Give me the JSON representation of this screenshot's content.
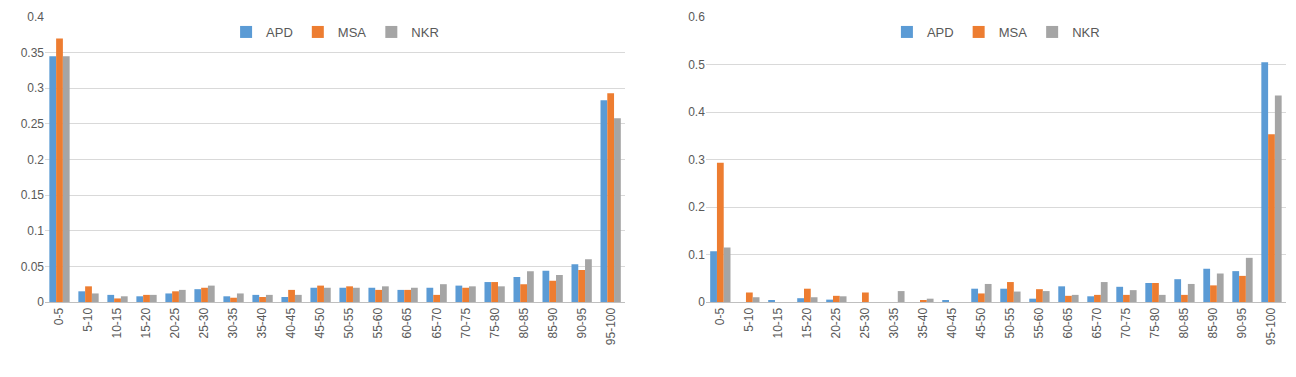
{
  "chart_data": [
    {
      "type": "bar",
      "categories": [
        "0-5",
        "5-10",
        "10-15",
        "15-20",
        "20-25",
        "25-30",
        "30-35",
        "35-40",
        "40-45",
        "45-50",
        "50-55",
        "55-60",
        "60-65",
        "65-70",
        "70-75",
        "75-80",
        "80-85",
        "85-90",
        "90-95",
        "95-100"
      ],
      "series": [
        {
          "name": "APD",
          "color": "#5B9BD5",
          "values": [
            0.345,
            0.015,
            0.01,
            0.008,
            0.012,
            0.018,
            0.008,
            0.01,
            0.007,
            0.02,
            0.02,
            0.02,
            0.017,
            0.02,
            0.023,
            0.028,
            0.035,
            0.044,
            0.053,
            0.283
          ]
        },
        {
          "name": "MSA",
          "color": "#ED7D31",
          "values": [
            0.37,
            0.022,
            0.005,
            0.01,
            0.015,
            0.02,
            0.006,
            0.007,
            0.017,
            0.023,
            0.022,
            0.017,
            0.017,
            0.01,
            0.02,
            0.028,
            0.025,
            0.03,
            0.045,
            0.293
          ]
        },
        {
          "name": "NKR",
          "color": "#A5A5A5",
          "values": [
            0.345,
            0.012,
            0.008,
            0.01,
            0.017,
            0.023,
            0.012,
            0.01,
            0.01,
            0.02,
            0.02,
            0.022,
            0.02,
            0.025,
            0.022,
            0.022,
            0.043,
            0.038,
            0.06,
            0.258
          ]
        }
      ],
      "ylim": [
        0,
        0.4
      ],
      "yticks": [
        0,
        0.05,
        0.1,
        0.15,
        0.2,
        0.25,
        0.3,
        0.35,
        0.4
      ],
      "grid": true,
      "legend": "top"
    },
    {
      "type": "bar",
      "categories": [
        "0-5",
        "5-10",
        "10-15",
        "15-20",
        "20-25",
        "25-30",
        "30-35",
        "35-40",
        "40-45",
        "45-50",
        "50-55",
        "55-60",
        "60-65",
        "65-70",
        "70-75",
        "75-80",
        "80-85",
        "85-90",
        "90-95",
        "95-100"
      ],
      "series": [
        {
          "name": "APD",
          "color": "#5B9BD5",
          "values": [
            0.107,
            0,
            0.003,
            0.008,
            0.005,
            0,
            0,
            0,
            0.003,
            0.028,
            0.028,
            0.007,
            0.033,
            0.012,
            0.032,
            0.04,
            0.048,
            0.07,
            0.065,
            0.505
          ]
        },
        {
          "name": "MSA",
          "color": "#ED7D31",
          "values": [
            0.293,
            0.02,
            0,
            0.028,
            0.013,
            0.02,
            0,
            0.003,
            0,
            0.018,
            0.042,
            0.027,
            0.013,
            0.015,
            0.015,
            0.04,
            0.015,
            0.035,
            0.055,
            0.353
          ]
        },
        {
          "name": "NKR",
          "color": "#A5A5A5",
          "values": [
            0.115,
            0.01,
            0,
            0.01,
            0.012,
            0,
            0.023,
            0.007,
            0,
            0.038,
            0.022,
            0.023,
            0.015,
            0.042,
            0.025,
            0.015,
            0.038,
            0.06,
            0.093,
            0.435
          ]
        }
      ],
      "ylim": [
        0,
        0.6
      ],
      "yticks": [
        0,
        0.1,
        0.2,
        0.3,
        0.4,
        0.5,
        0.6
      ],
      "grid": true,
      "legend": "top"
    }
  ]
}
